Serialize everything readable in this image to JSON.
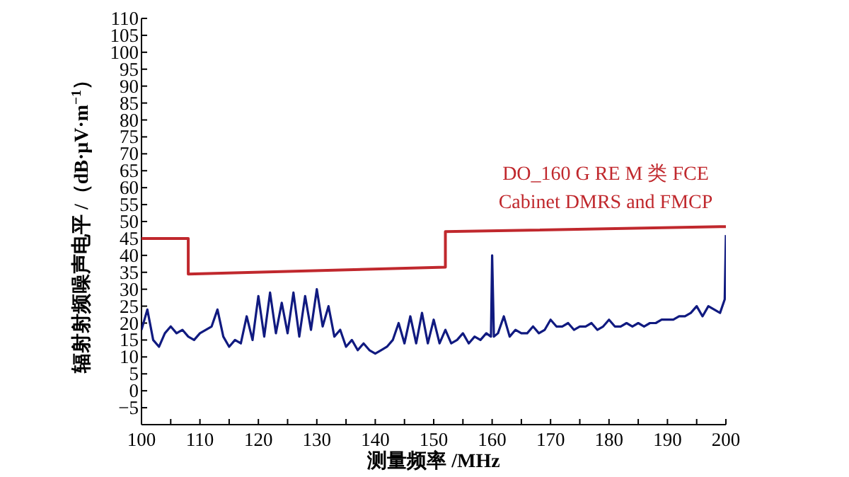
{
  "chart_data": {
    "type": "line",
    "xlabel": "测量频率 /MHz",
    "ylabel": "辐射射频噪声电平 /（dB·μV·m$^{−1}$）",
    "xlim": [
      100,
      200
    ],
    "ylim": [
      -10,
      110
    ],
    "xticks": [
      100,
      {
        "value": 105,
        "label": null
      },
      110,
      {
        "value": 115,
        "label": null
      },
      120,
      {
        "value": 125,
        "label": null
      },
      130,
      {
        "value": 135,
        "label": null
      },
      140,
      {
        "value": 145,
        "label": null
      },
      150,
      {
        "value": 155,
        "label": null
      },
      160,
      {
        "value": 165,
        "label": null
      },
      170,
      {
        "value": 175,
        "label": null
      },
      180,
      {
        "value": 185,
        "label": null
      },
      190,
      {
        "value": 195,
        "label": null
      },
      200
    ],
    "yticks": [
      {
        "value": -5,
        "label": "−5"
      },
      0,
      5,
      10,
      15,
      20,
      25,
      30,
      35,
      40,
      45,
      50,
      55,
      60,
      65,
      70,
      75,
      80,
      85,
      90,
      95,
      100,
      105,
      110
    ],
    "series": [
      {
        "name": "DO_160 G RE M 类 FCE Cabinet DMRS and FMCP",
        "color": "#c0282d",
        "x": [
          100,
          108,
          108,
          152,
          152,
          200
        ],
        "values": [
          45,
          45,
          34.5,
          36.5,
          47,
          48.5
        ]
      },
      {
        "color": "#101a80",
        "x": [
          100,
          101,
          102,
          103,
          104,
          105,
          106,
          107,
          108,
          109,
          110,
          111,
          112,
          113,
          114,
          115,
          116,
          117,
          118,
          119,
          120,
          121,
          122,
          123,
          124,
          125,
          126,
          127,
          128,
          129,
          130,
          131,
          132,
          133,
          134,
          135,
          136,
          137,
          138,
          139,
          140,
          141,
          142,
          143,
          144,
          145,
          146,
          147,
          148,
          149,
          150,
          151,
          152,
          153,
          154,
          155,
          156,
          157,
          158,
          159,
          159.8,
          160,
          160.3,
          161,
          162,
          163,
          164,
          165,
          166,
          167,
          168,
          169,
          170,
          171,
          172,
          173,
          174,
          175,
          176,
          177,
          178,
          179,
          180,
          181,
          182,
          183,
          184,
          185,
          186,
          187,
          188,
          189,
          190,
          191,
          192,
          193,
          194,
          195,
          196,
          197,
          198,
          199,
          199.8,
          200
        ],
        "values": [
          18,
          24,
          15,
          13,
          17,
          19,
          17,
          18,
          16,
          15,
          17,
          18,
          19,
          24,
          16,
          13,
          15,
          14,
          22,
          15,
          28,
          16,
          29,
          17,
          26,
          17,
          29,
          16,
          28,
          18,
          30,
          19,
          25,
          16,
          18,
          13,
          15,
          12,
          14,
          12,
          11,
          12,
          13,
          15,
          20,
          14,
          22,
          14,
          23,
          14,
          21,
          14,
          18,
          14,
          15,
          17,
          14,
          16,
          15,
          17,
          16,
          40,
          16,
          17,
          22,
          16,
          18,
          17,
          17,
          19,
          17,
          18,
          21,
          19,
          19,
          20,
          18,
          19,
          19,
          20,
          18,
          19,
          21,
          19,
          19,
          20,
          19,
          20,
          19,
          20,
          20,
          21,
          21,
          21,
          22,
          22,
          23,
          25,
          22,
          25,
          24,
          23,
          27,
          46
        ]
      }
    ]
  }
}
